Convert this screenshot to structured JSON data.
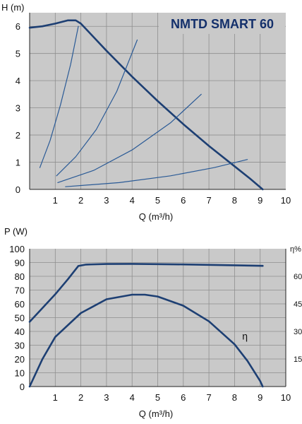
{
  "colors": {
    "plot_bg": "#c9c9c9",
    "grid": "#8e8e8e",
    "curve_main": "#1d3f73",
    "curve_thin": "#2a5a96",
    "title_text": "#14306b",
    "title_box_border": "#1d3f73"
  },
  "chart_data": [
    {
      "type": "line",
      "title": "NMTD SMART 60",
      "xlabel": "Q (m³/h)",
      "ylabel": "H (m)",
      "xlim": [
        0,
        10
      ],
      "ylim": [
        0,
        6.5
      ],
      "x_ticks": [
        "1",
        "2",
        "3",
        "4",
        "5",
        "6",
        "7",
        "8",
        "9",
        "10"
      ],
      "y_ticks": [
        "0",
        "1",
        "2",
        "3",
        "4",
        "5",
        "6"
      ],
      "grid": true,
      "series": [
        {
          "role": "max-curve",
          "points": [
            [
              0,
              5.95
            ],
            [
              0.5,
              6.0
            ],
            [
              1.0,
              6.1
            ],
            [
              1.5,
              6.22
            ],
            [
              1.8,
              6.22
            ],
            [
              2.0,
              6.1
            ],
            [
              2.5,
              5.6
            ],
            [
              3.0,
              5.1
            ],
            [
              4.0,
              4.15
            ],
            [
              5.0,
              3.25
            ],
            [
              6.0,
              2.4
            ],
            [
              7.0,
              1.6
            ],
            [
              8.0,
              0.85
            ],
            [
              8.6,
              0.4
            ],
            [
              9.1,
              0.0
            ]
          ]
        },
        {
          "role": "system-curve",
          "points": [
            [
              0.4,
              0.8
            ],
            [
              0.8,
              1.8
            ],
            [
              1.2,
              3.1
            ],
            [
              1.6,
              4.6
            ],
            [
              1.9,
              6.0
            ]
          ]
        },
        {
          "role": "system-curve",
          "points": [
            [
              1.05,
              0.5
            ],
            [
              1.8,
              1.2
            ],
            [
              2.6,
              2.2
            ],
            [
              3.4,
              3.6
            ],
            [
              4.2,
              5.5
            ]
          ]
        },
        {
          "role": "system-curve",
          "points": [
            [
              1.1,
              0.25
            ],
            [
              2.5,
              0.7
            ],
            [
              4.0,
              1.45
            ],
            [
              5.5,
              2.45
            ],
            [
              6.7,
              3.5
            ]
          ]
        },
        {
          "role": "system-curve",
          "points": [
            [
              1.4,
              0.1
            ],
            [
              3.5,
              0.25
            ],
            [
              5.5,
              0.5
            ],
            [
              7.2,
              0.8
            ],
            [
              8.5,
              1.1
            ]
          ]
        }
      ]
    },
    {
      "type": "line",
      "xlabel": "Q (m³/h)",
      "ylabel": "P (W)",
      "y2label": "η%",
      "xlim": [
        0,
        10
      ],
      "ylim": [
        0,
        100
      ],
      "y2lim": [
        0,
        75
      ],
      "x_ticks": [
        "1",
        "2",
        "3",
        "4",
        "5",
        "6",
        "7",
        "8",
        "9",
        "10"
      ],
      "y_ticks": [
        "0",
        "10",
        "20",
        "30",
        "40",
        "50",
        "60",
        "70",
        "80",
        "90",
        "100"
      ],
      "y2_ticks": [
        "15",
        "30",
        "45",
        "60"
      ],
      "grid": true,
      "annotations": [
        {
          "text": "η",
          "x": 8.3,
          "y": 34
        }
      ],
      "series": [
        {
          "role": "power",
          "axis": "left",
          "points": [
            [
              0,
              47
            ],
            [
              0.5,
              57
            ],
            [
              1.0,
              67
            ],
            [
              1.5,
              78
            ],
            [
              1.9,
              87.5
            ],
            [
              2.2,
              88.5
            ],
            [
              3.0,
              88.9
            ],
            [
              4.0,
              89.0
            ],
            [
              5.0,
              88.8
            ],
            [
              6.0,
              88.6
            ],
            [
              7.0,
              88.3
            ],
            [
              8.0,
              88.0
            ],
            [
              9.1,
              87.6
            ]
          ]
        },
        {
          "role": "efficiency",
          "axis": "right",
          "points": [
            [
              0,
              0
            ],
            [
              0.5,
              15
            ],
            [
              1.0,
              27
            ],
            [
              2.0,
              40
            ],
            [
              3.0,
              47.5
            ],
            [
              4.0,
              50
            ],
            [
              4.5,
              50
            ],
            [
              5.0,
              49
            ],
            [
              6.0,
              44
            ],
            [
              7.0,
              35.5
            ],
            [
              8.0,
              23
            ],
            [
              8.5,
              14
            ],
            [
              9.0,
              3
            ],
            [
              9.1,
              0
            ]
          ]
        }
      ]
    }
  ]
}
